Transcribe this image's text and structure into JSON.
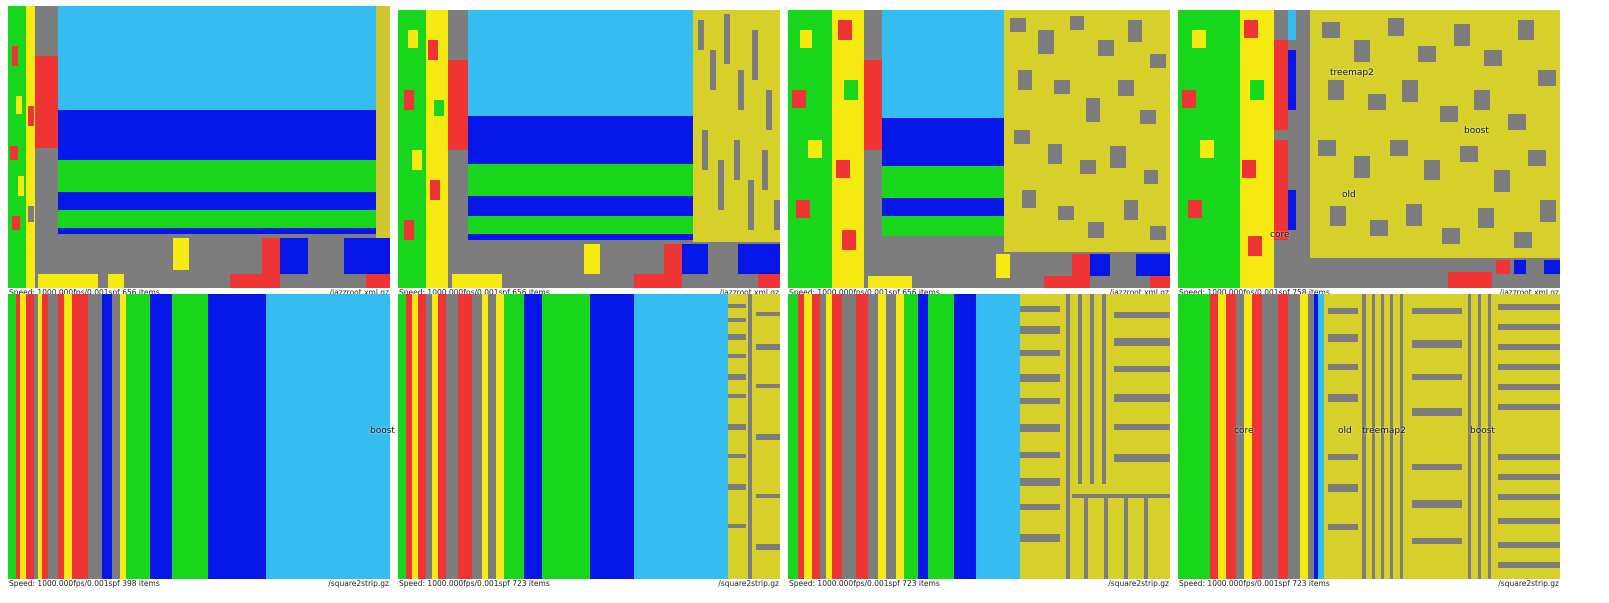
{
  "colors": {
    "lightblue": "#35bcf0",
    "blue": "#0516e6",
    "green": "#18d61c",
    "red": "#ee3434",
    "yellow": "#f5eb12",
    "gray": "#7d7d7d",
    "olive": "#d8d02a"
  },
  "panels": [
    {
      "id": "p1",
      "speed_text": "Speed: 1000.000fps/0.001spf 656 items",
      "file_text": "/jazzroot.xml.gz",
      "labels": []
    },
    {
      "id": "p2",
      "speed_text": "Speed: 1000.000fps/0.001spf 656 items",
      "file_text": "/jazzroot.xml.gz",
      "labels": []
    },
    {
      "id": "p3",
      "speed_text": "Speed: 1000.000fps/0.001spf 656 items",
      "file_text": "/jazzroot.xml.gz",
      "labels": []
    },
    {
      "id": "p4",
      "speed_text": "Speed: 1000.000fps/0.001spf 758 items",
      "file_text": "/jazzroot.xml.gz",
      "labels": [
        "treemap2",
        "boost",
        "old",
        "core"
      ]
    },
    {
      "id": "p5",
      "speed_text": "Speed: 1000.000fps/0.001spf 398 items",
      "file_text": "/square2strip.gz",
      "labels": [
        "boost"
      ]
    },
    {
      "id": "p6",
      "speed_text": "Speed: 1000.000fps/0.001spf 723 items",
      "file_text": "/square2strip.gz",
      "labels": []
    },
    {
      "id": "p7",
      "speed_text": "Speed: 1000.000fps/0.001spf 723 items",
      "file_text": "/square2strip.gz",
      "labels": []
    },
    {
      "id": "p8",
      "speed_text": "Speed: 1000.000fps/0.001spf 723 items",
      "file_text": "/square2strip.gz",
      "labels": [
        "core",
        "old",
        "treemap2",
        "boost"
      ]
    }
  ]
}
